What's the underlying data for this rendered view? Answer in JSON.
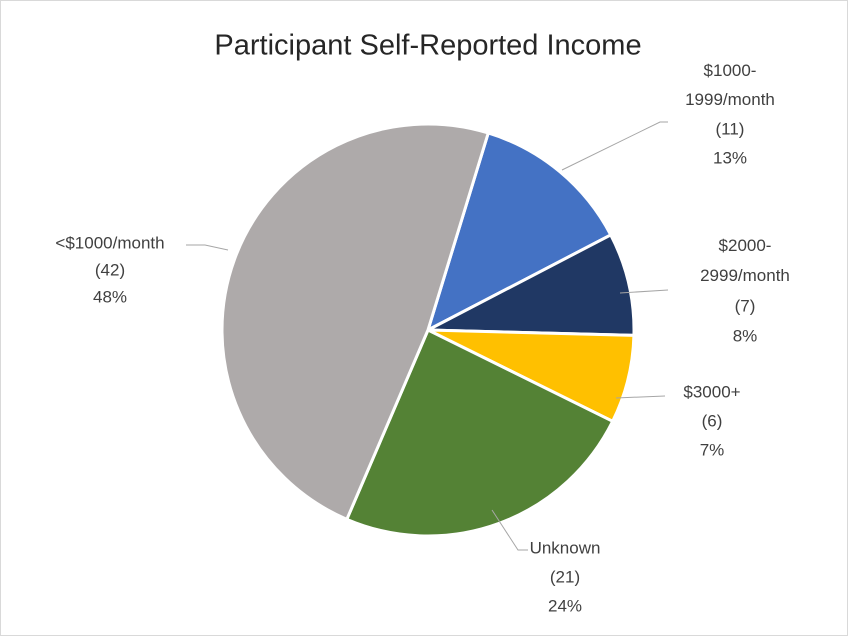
{
  "chart_data": {
    "type": "pie",
    "title": "Participant Self-Reported Income",
    "categories": [
      "$1000-1999/month",
      "$2000-2999/month",
      "$3000+",
      "Unknown",
      "<$1000/month"
    ],
    "values": [
      11,
      7,
      6,
      21,
      42
    ],
    "value_labels": [
      "(11)",
      "(7)",
      "(6)",
      "(21)",
      "(42)"
    ],
    "percents": [
      13,
      8,
      7,
      24,
      48
    ],
    "percent_labels": [
      "13%",
      "8%",
      "7%",
      "24%",
      "48%"
    ],
    "colors": [
      "#4472c4",
      "#203864",
      "#ffc000",
      "#548235",
      "#aeaaaa"
    ]
  }
}
